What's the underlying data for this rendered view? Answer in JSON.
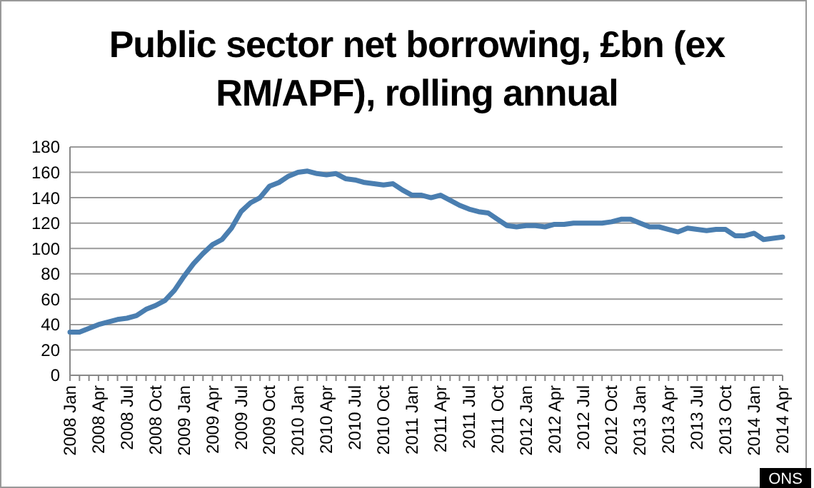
{
  "chart_data": {
    "type": "line",
    "title": "Public sector net borrowing, £bn (ex RM/APF), rolling annual",
    "categories": [
      "2008 Jan",
      null,
      null,
      "2008 Apr",
      null,
      null,
      "2008 Jul",
      null,
      null,
      "2008 Oct",
      null,
      null,
      "2009 Jan",
      null,
      null,
      "2009 Apr",
      null,
      null,
      "2009 Jul",
      null,
      null,
      "2009 Oct",
      null,
      null,
      "2010 Jan",
      null,
      null,
      "2010 Apr",
      null,
      null,
      "2010 Jul",
      null,
      null,
      "2010 Oct",
      null,
      null,
      "2011 Jan",
      null,
      null,
      "2011 Apr",
      null,
      null,
      "2011 Jul",
      null,
      null,
      "2011 Oct",
      null,
      null,
      "2012 Jan",
      null,
      null,
      "2012 Apr",
      null,
      null,
      "2012 Jul",
      null,
      null,
      "2012 Oct",
      null,
      null,
      "2013 Jan",
      null,
      null,
      "2013 Apr",
      null,
      null,
      "2013 Jul",
      null,
      null,
      "2013 Oct",
      null,
      null,
      "2014 Jan",
      null,
      null,
      "2014 Apr"
    ],
    "series": [
      {
        "color": "#4a7eb0",
        "values": [
          34,
          34,
          37,
          40,
          42,
          44,
          45,
          47,
          52,
          55,
          59,
          67,
          78,
          88,
          96,
          103,
          107,
          116,
          129,
          136,
          140,
          149,
          152,
          157,
          160,
          161,
          159,
          158,
          159,
          155,
          154,
          152,
          151,
          150,
          151,
          146,
          142,
          142,
          140,
          142,
          138,
          134,
          131,
          129,
          128,
          123,
          118,
          117,
          118,
          118,
          117,
          119,
          119,
          120,
          120,
          120,
          120,
          121,
          123,
          123,
          120,
          117,
          117,
          115,
          113,
          116,
          115,
          114,
          115,
          115,
          110,
          110,
          112,
          107,
          108,
          109
        ]
      }
    ],
    "ylim": [
      0,
      180
    ],
    "yticks": [
      0,
      20,
      40,
      60,
      80,
      100,
      120,
      140,
      160,
      180
    ],
    "grid": "y",
    "annotations": [
      "ONS"
    ]
  }
}
